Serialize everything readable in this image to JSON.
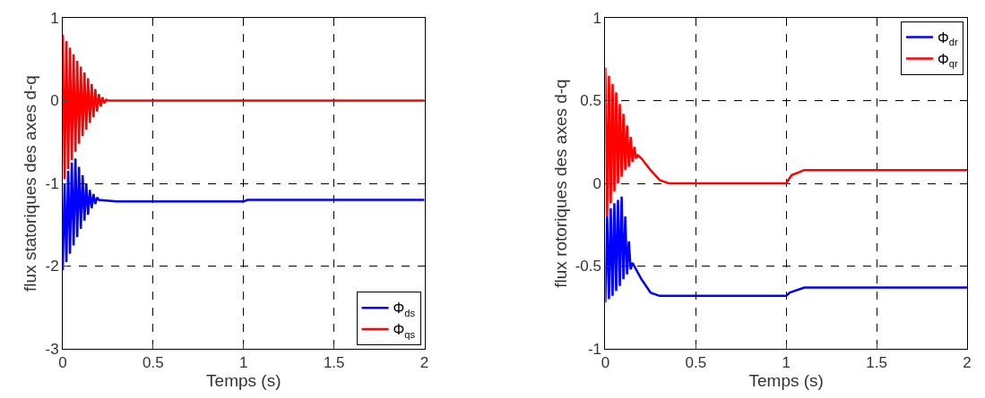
{
  "chart_data": [
    {
      "type": "line",
      "xlabel": "Temps (s)",
      "ylabel": "flux statoriques des axes d-q",
      "xlim": [
        0,
        2
      ],
      "xticks": [
        0,
        0.5,
        1,
        1.5,
        2
      ],
      "ylim": [
        -3,
        1
      ],
      "yticks": [
        -3,
        -2,
        -1,
        0,
        1
      ],
      "grid": true,
      "legend": "bottom right",
      "series": [
        {
          "name": "Φ$_{ds}$",
          "color": "#0000ff",
          "x": [
            0,
            0.01,
            0.02,
            0.03,
            0.04,
            0.05,
            0.06,
            0.07,
            0.08,
            0.09,
            0.1,
            0.11,
            0.12,
            0.13,
            0.14,
            0.15,
            0.16,
            0.17,
            0.18,
            0.19,
            0.2,
            0.3,
            1.0,
            1.02,
            2
          ],
          "values": [
            -2.05,
            -1.0,
            -1.95,
            -0.85,
            -1.85,
            -0.75,
            -1.75,
            -0.7,
            -1.65,
            -0.8,
            -1.55,
            -0.9,
            -1.45,
            -1.0,
            -1.38,
            -1.08,
            -1.3,
            -1.13,
            -1.25,
            -1.17,
            -1.2,
            -1.22,
            -1.22,
            -1.2,
            -1.2
          ]
        },
        {
          "name": "Φ$_{qs}$",
          "color": "#ff0000",
          "x": [
            0,
            0.01,
            0.02,
            0.03,
            0.04,
            0.05,
            0.06,
            0.07,
            0.08,
            0.09,
            0.1,
            0.11,
            0.12,
            0.13,
            0.14,
            0.15,
            0.16,
            0.17,
            0.18,
            0.19,
            0.2,
            0.21,
            0.22,
            0.23,
            0.24,
            0.25,
            2
          ],
          "values": [
            0.8,
            -0.95,
            0.72,
            -0.83,
            0.64,
            -0.72,
            0.56,
            -0.62,
            0.48,
            -0.52,
            0.41,
            -0.43,
            0.34,
            -0.35,
            0.27,
            -0.27,
            0.2,
            -0.2,
            0.14,
            -0.13,
            0.08,
            -0.07,
            0.04,
            -0.03,
            0.01,
            0,
            0
          ]
        }
      ]
    },
    {
      "type": "line",
      "xlabel": "Temps (s)",
      "ylabel": "flux rotoriques des axes d-q",
      "xlim": [
        0,
        2
      ],
      "xticks": [
        0,
        0.5,
        1,
        1.5,
        2
      ],
      "ylim": [
        -1,
        1
      ],
      "yticks": [
        -1,
        {
          "value": -0.5,
          "label": "-0.5"
        },
        0,
        0.5,
        1
      ],
      "grid": true,
      "legend": "top right",
      "series": [
        {
          "name": "Φ$_{dr}$",
          "color": "#0000ff",
          "x": [
            0,
            0.01,
            0.02,
            0.03,
            0.04,
            0.05,
            0.06,
            0.07,
            0.08,
            0.09,
            0.1,
            0.11,
            0.12,
            0.13,
            0.14,
            0.15,
            0.2,
            0.25,
            0.3,
            1.0,
            1.02,
            1.1,
            2
          ],
          "values": [
            -0.72,
            -0.2,
            -0.7,
            -0.15,
            -0.68,
            -0.12,
            -0.65,
            -0.1,
            -0.62,
            -0.08,
            -0.58,
            -0.2,
            -0.55,
            -0.35,
            -0.52,
            -0.48,
            -0.58,
            -0.66,
            -0.68,
            -0.68,
            -0.66,
            -0.63,
            -0.63
          ]
        },
        {
          "name": "Φ$_{qr}$",
          "color": "#ff0000",
          "x": [
            0,
            0.01,
            0.02,
            0.03,
            0.04,
            0.05,
            0.06,
            0.07,
            0.08,
            0.09,
            0.1,
            0.11,
            0.12,
            0.13,
            0.14,
            0.15,
            0.16,
            0.17,
            0.18,
            0.2,
            0.25,
            0.3,
            0.35,
            1.0,
            1.03,
            1.1,
            2
          ],
          "values": [
            0.7,
            -0.2,
            0.65,
            -0.12,
            0.6,
            -0.05,
            0.55,
            0.0,
            0.48,
            0.04,
            0.42,
            0.08,
            0.35,
            0.1,
            0.28,
            0.13,
            0.22,
            0.15,
            0.17,
            0.15,
            0.08,
            0.02,
            0,
            0,
            0.05,
            0.08,
            0.08
          ]
        }
      ]
    }
  ]
}
